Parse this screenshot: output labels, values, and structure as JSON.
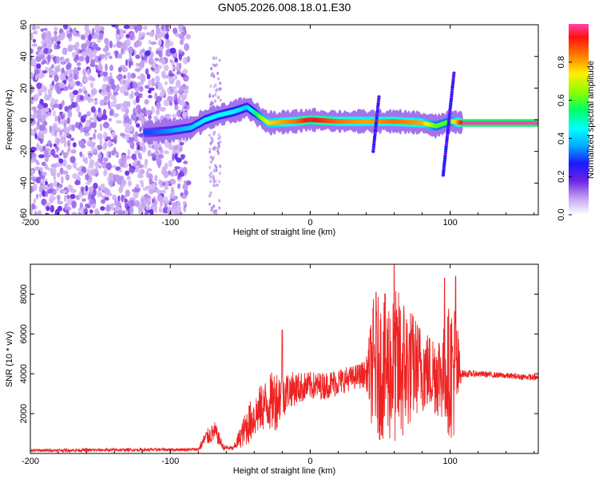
{
  "title": "GN05.2026.008.18.01.E30",
  "chart_data": [
    {
      "type": "heatmap",
      "name": "spectrogram",
      "xlabel": "Height of straight line (km)",
      "ylabel": "Frequency (Hz)",
      "xlim": [
        -200,
        163
      ],
      "ylim": [
        -60,
        60
      ],
      "xticks": [
        -200,
        -100,
        0,
        100
      ],
      "yticks": [
        -60,
        -40,
        -20,
        0,
        20,
        40,
        60
      ],
      "colorbar": {
        "label": "Normalized spectral amplitude",
        "range": [
          0,
          1
        ],
        "ticks": [
          "0.0",
          "0.2",
          "0.4",
          "0.6",
          "0.8"
        ]
      },
      "ridge": [
        {
          "x": -115,
          "y": -8,
          "amp": 0.3
        },
        {
          "x": -100,
          "y": -7,
          "amp": 0.35
        },
        {
          "x": -85,
          "y": -5,
          "amp": 0.4
        },
        {
          "x": -75,
          "y": 0,
          "amp": 0.45
        },
        {
          "x": -65,
          "y": 3,
          "amp": 0.45
        },
        {
          "x": -55,
          "y": 5,
          "amp": 0.45
        },
        {
          "x": -45,
          "y": 8,
          "amp": 0.4
        },
        {
          "x": -30,
          "y": -2,
          "amp": 0.75
        },
        {
          "x": -10,
          "y": -1,
          "amp": 0.85
        },
        {
          "x": 0,
          "y": 0,
          "amp": 0.95
        },
        {
          "x": 20,
          "y": -1,
          "amp": 0.85
        },
        {
          "x": 40,
          "y": -1,
          "amp": 0.8
        },
        {
          "x": 60,
          "y": -1,
          "amp": 0.85
        },
        {
          "x": 80,
          "y": -2,
          "amp": 0.8
        },
        {
          "x": 90,
          "y": -4,
          "amp": 0.6
        },
        {
          "x": 100,
          "y": -1,
          "amp": 0.6
        },
        {
          "x": 110,
          "y": -2,
          "amp": 1.0
        },
        {
          "x": 163,
          "y": -2,
          "amp": 1.0
        }
      ]
    },
    {
      "type": "line",
      "name": "snr",
      "xlabel": "Height of straight line (km)",
      "ylabel": "SNR (10 * v/v)",
      "xlim": [
        -200,
        163
      ],
      "ylim": [
        0,
        9500
      ],
      "xticks": [
        -200,
        -100,
        0,
        100
      ],
      "yticks": [
        2000,
        4000,
        6000,
        8000
      ],
      "color": "#ee2222",
      "envelope": {
        "x": [
          -200,
          -80,
          -75,
          -68,
          -62,
          -55,
          -45,
          -35,
          -25,
          -15,
          0,
          10,
          20,
          30,
          40,
          45,
          55,
          65,
          75,
          85,
          95,
          100,
          104,
          108,
          120,
          140,
          163
        ],
        "mean": [
          150,
          200,
          750,
          1100,
          300,
          250,
          1400,
          2300,
          2700,
          3200,
          3400,
          3400,
          3600,
          3800,
          4000,
          4300,
          4300,
          4300,
          4400,
          4100,
          4000,
          4200,
          4200,
          4000,
          4000,
          3900,
          3800
        ],
        "amplitude": [
          80,
          80,
          400,
          500,
          150,
          100,
          1000,
          1200,
          1600,
          900,
          700,
          700,
          700,
          600,
          700,
          3500,
          3800,
          4000,
          2500,
          2000,
          2400,
          3500,
          3500,
          200,
          150,
          150,
          150
        ]
      },
      "spikes": [
        {
          "x": -20,
          "y": 6200
        },
        {
          "x": 47,
          "y": 8100
        },
        {
          "x": 60,
          "y": 9500
        },
        {
          "x": 96,
          "y": 8800
        },
        {
          "x": 104,
          "y": 8900
        }
      ]
    }
  ]
}
